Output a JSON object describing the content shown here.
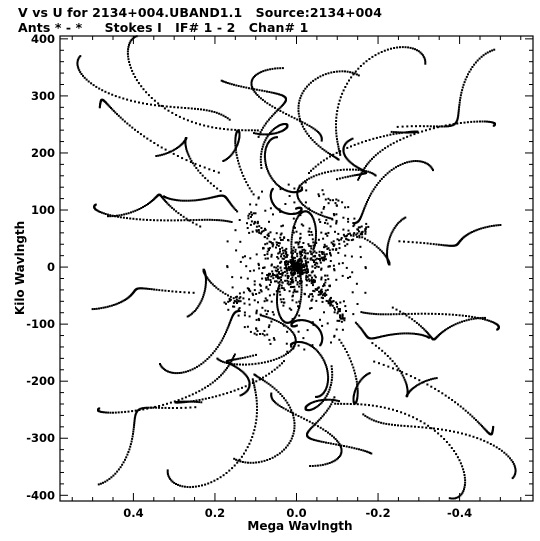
{
  "header": {
    "title_line1": "V vs U for 2134+004.UBAND1.1   Source:2134+004",
    "title_line2": "Ants * - *     Stokes I   IF# 1 - 2   Chan# 1"
  },
  "chart_data": {
    "type": "scatter",
    "title": "V vs U for 2134+004.UBAND1.1   Source:2134+004",
    "subtitle": "Ants * - *     Stokes I   IF# 1 - 2   Chan# 1",
    "xlabel": "Mega Wavlngth",
    "ylabel": "Kilo Wavlngth",
    "xlim": [
      0.58,
      -0.58
    ],
    "ylim": [
      -410,
      405
    ],
    "x_reversed": true,
    "xticks": [
      0.4,
      0.2,
      0.0,
      -0.2,
      -0.4
    ],
    "xtick_labels": [
      "0.4",
      "0.2",
      "0.0",
      "-0.2",
      "-0.4"
    ],
    "yticks": [
      400,
      300,
      200,
      100,
      0,
      -100,
      -200,
      -300,
      -400
    ],
    "ytick_labels": [
      "400",
      "300",
      "200",
      "100",
      "0",
      "-100",
      "-200",
      "-300",
      "-400"
    ],
    "grid": false,
    "marker_color": "#000000",
    "points_description": "uv-coverage samples: dense central concentration with elongated arcs; points symmetric through origin (each (u,v) mirrored to (-u,-v))",
    "arc_count": 24,
    "samples_per_arc": 60
  }
}
